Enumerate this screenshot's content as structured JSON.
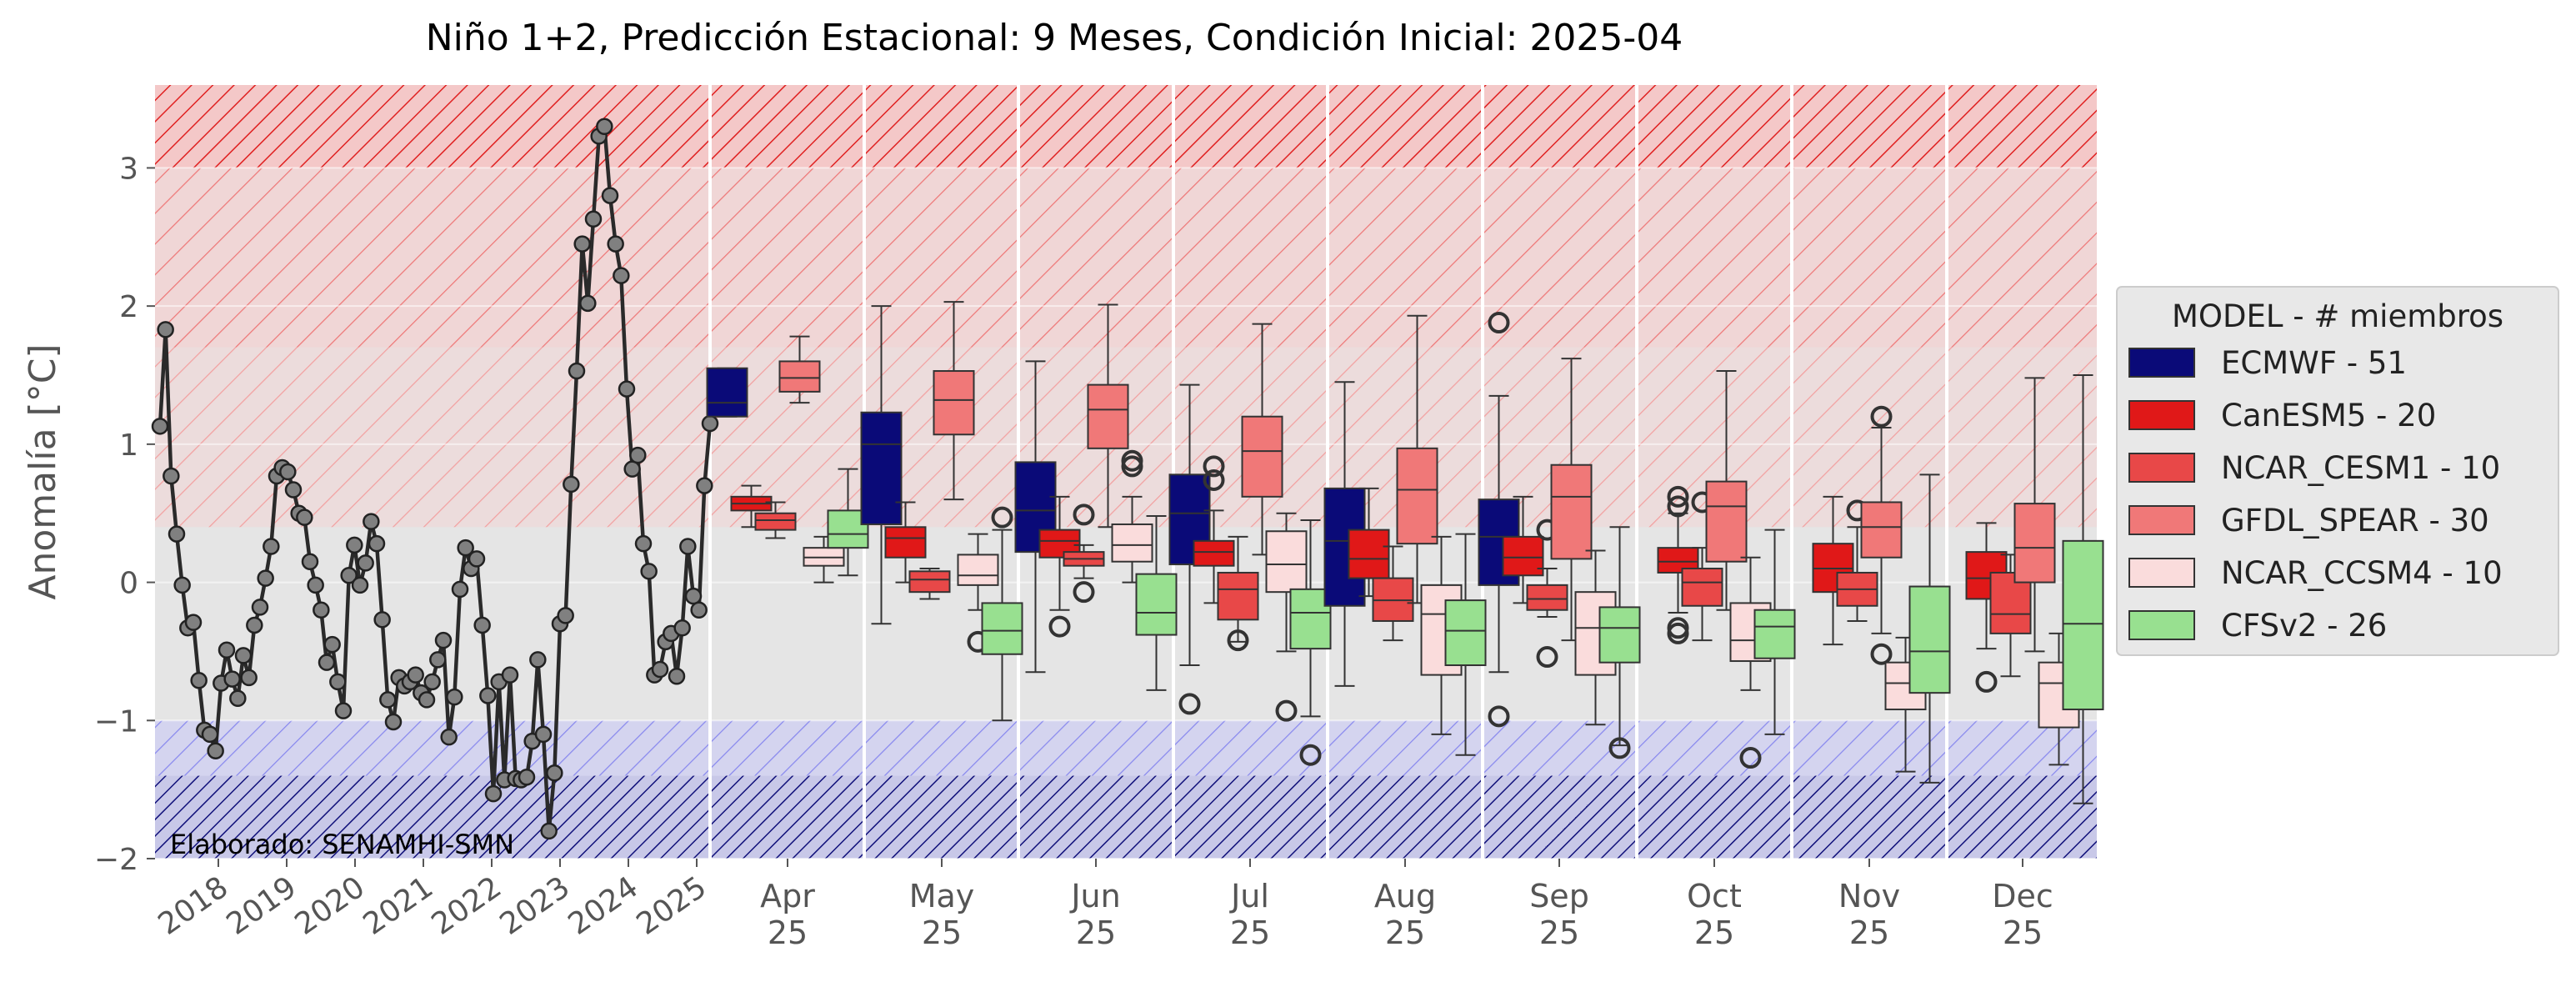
{
  "chart_data": {
    "type": "box",
    "title": "Niño 1+2, Predicción Estacional: 9 Meses, Condición Inicial: 2025-04",
    "ylabel": "Anomalía [°C]",
    "xlabel": "",
    "ylim": [
      -2,
      3.6
    ],
    "yticks": [
      -2,
      -1,
      0,
      1,
      2,
      3
    ],
    "ytick_labels": [
      "−2",
      "−1",
      "0",
      "1",
      "2",
      "3"
    ],
    "grid": true,
    "credit": "Elaborado: SENAMHI-SMN",
    "bands": [
      {
        "from": 3.0,
        "to": 3.6,
        "color": "#ee2222",
        "hatch": "dense"
      },
      {
        "from": 1.7,
        "to": 3.0,
        "color": "#ee6666",
        "hatch": "medium"
      },
      {
        "from": 0.4,
        "to": 1.7,
        "color": "#f08080",
        "hatch": "light"
      },
      {
        "from": -1.4,
        "to": -1.0,
        "color": "#5555dd",
        "hatch": "light"
      },
      {
        "from": -2.0,
        "to": -1.4,
        "color": "#000080",
        "hatch": "dense"
      }
    ],
    "history": {
      "year_ticks": [
        "2018",
        "2019",
        "2020",
        "2021",
        "2022",
        "2023",
        "2024",
        "2025"
      ],
      "values": [
        1.13,
        1.83,
        0.77,
        0.35,
        -0.02,
        -0.33,
        -0.29,
        -0.71,
        -1.07,
        -1.1,
        -1.22,
        -0.73,
        -0.49,
        -0.7,
        -0.84,
        -0.53,
        -0.69,
        -0.31,
        -0.18,
        0.03,
        0.26,
        0.77,
        0.83,
        0.8,
        0.67,
        0.5,
        0.47,
        0.15,
        -0.02,
        -0.2,
        -0.58,
        -0.45,
        -0.72,
        -0.93,
        0.05,
        0.27,
        -0.02,
        0.14,
        0.44,
        0.28,
        -0.27,
        -0.85,
        -1.01,
        -0.69,
        -0.75,
        -0.72,
        -0.67,
        -0.8,
        -0.85,
        -0.72,
        -0.56,
        -0.42,
        -1.12,
        -0.83,
        -0.05,
        0.25,
        0.1,
        0.17,
        -0.31,
        -0.82,
        -1.53,
        -0.72,
        -1.43,
        -0.67,
        -1.42,
        -1.43,
        -1.41,
        -1.15,
        -0.56,
        -1.1,
        -1.8,
        -1.38,
        -0.3,
        -0.24,
        0.71,
        1.53,
        2.45,
        2.02,
        2.63,
        3.23,
        3.3,
        2.8,
        2.45,
        2.22,
        1.4,
        0.82,
        0.92,
        0.28,
        0.08,
        -0.67,
        -0.63,
        -0.43,
        -0.37,
        -0.68,
        -0.33,
        0.26,
        -0.1,
        -0.2,
        0.7,
        1.15
      ]
    },
    "legend": {
      "title": "MODEL - # miembros",
      "position": "right",
      "entries": [
        {
          "label": "ECMWF - 51",
          "color": "#0a0a78"
        },
        {
          "label": "CanESM5 - 20",
          "color": "#e01818"
        },
        {
          "label": "NCAR_CESM1 - 10",
          "color": "#e84848"
        },
        {
          "label": "GFDL_SPEAR - 30",
          "color": "#f07878"
        },
        {
          "label": "NCAR_CCSM4 - 10",
          "color": "#fadcdc"
        },
        {
          "label": "CFSv2 - 26",
          "color": "#98e090"
        }
      ]
    },
    "months": [
      {
        "label": "Apr\n25",
        "boxes": [
          {
            "model": 0,
            "min": 1.2,
            "q1": 1.2,
            "med": 1.3,
            "q3": 1.55,
            "max": 1.55,
            "outliers": []
          },
          {
            "model": 1,
            "min": 0.4,
            "q1": 0.52,
            "med": 0.57,
            "q3": 0.62,
            "max": 0.7,
            "outliers": []
          },
          {
            "model": 2,
            "min": 0.32,
            "q1": 0.38,
            "med": 0.45,
            "q3": 0.5,
            "max": 0.58,
            "outliers": []
          },
          {
            "model": 3,
            "min": 1.3,
            "q1": 1.38,
            "med": 1.48,
            "q3": 1.6,
            "max": 1.78,
            "outliers": []
          },
          {
            "model": 4,
            "min": 0.0,
            "q1": 0.12,
            "med": 0.18,
            "q3": 0.25,
            "max": 0.33,
            "outliers": []
          },
          {
            "model": 5,
            "min": 0.05,
            "q1": 0.25,
            "med": 0.35,
            "q3": 0.52,
            "max": 0.82,
            "outliers": []
          }
        ]
      },
      {
        "label": "May\n25",
        "boxes": [
          {
            "model": 0,
            "min": -0.3,
            "q1": 0.42,
            "med": 1.0,
            "q3": 1.23,
            "max": 2.0,
            "outliers": []
          },
          {
            "model": 1,
            "min": 0.0,
            "q1": 0.18,
            "med": 0.32,
            "q3": 0.4,
            "max": 0.58,
            "outliers": []
          },
          {
            "model": 2,
            "min": -0.12,
            "q1": -0.07,
            "med": 0.02,
            "q3": 0.08,
            "max": 0.1,
            "outliers": []
          },
          {
            "model": 3,
            "min": 0.6,
            "q1": 1.07,
            "med": 1.32,
            "q3": 1.53,
            "max": 2.03,
            "outliers": []
          },
          {
            "model": 4,
            "min": -0.2,
            "q1": -0.02,
            "med": 0.05,
            "q3": 0.2,
            "max": 0.35,
            "outliers": [
              -0.43
            ]
          },
          {
            "model": 5,
            "min": -1.0,
            "q1": -0.52,
            "med": -0.35,
            "q3": -0.15,
            "max": 0.38,
            "outliers": [
              0.47
            ]
          }
        ]
      },
      {
        "label": "Jun\n25",
        "boxes": [
          {
            "model": 0,
            "min": -0.65,
            "q1": 0.22,
            "med": 0.52,
            "q3": 0.87,
            "max": 1.6,
            "outliers": []
          },
          {
            "model": 1,
            "min": -0.2,
            "q1": 0.18,
            "med": 0.3,
            "q3": 0.38,
            "max": 0.62,
            "outliers": [
              -0.32
            ]
          },
          {
            "model": 2,
            "min": 0.03,
            "q1": 0.12,
            "med": 0.17,
            "q3": 0.22,
            "max": 0.27,
            "outliers": [
              0.49,
              -0.07
            ]
          },
          {
            "model": 3,
            "min": 0.4,
            "q1": 0.97,
            "med": 1.25,
            "q3": 1.43,
            "max": 2.01,
            "outliers": []
          },
          {
            "model": 4,
            "min": 0.0,
            "q1": 0.15,
            "med": 0.27,
            "q3": 0.42,
            "max": 0.62,
            "outliers": [
              0.88,
              0.84
            ]
          },
          {
            "model": 5,
            "min": -0.78,
            "q1": -0.38,
            "med": -0.22,
            "q3": 0.06,
            "max": 0.48,
            "outliers": []
          }
        ]
      },
      {
        "label": "Jul\n25",
        "boxes": [
          {
            "model": 0,
            "min": -0.6,
            "q1": 0.13,
            "med": 0.5,
            "q3": 0.78,
            "max": 1.43,
            "outliers": [
              -0.88
            ]
          },
          {
            "model": 1,
            "min": -0.15,
            "q1": 0.12,
            "med": 0.22,
            "q3": 0.3,
            "max": 0.52,
            "outliers": [
              0.84,
              0.74
            ]
          },
          {
            "model": 2,
            "min": -0.43,
            "q1": -0.27,
            "med": -0.05,
            "q3": 0.07,
            "max": 0.33,
            "outliers": [
              -0.42
            ]
          },
          {
            "model": 3,
            "min": 0.2,
            "q1": 0.62,
            "med": 0.95,
            "q3": 1.2,
            "max": 1.87,
            "outliers": []
          },
          {
            "model": 4,
            "min": -0.5,
            "q1": -0.07,
            "med": 0.13,
            "q3": 0.37,
            "max": 0.5,
            "outliers": [
              -0.93
            ]
          },
          {
            "model": 5,
            "min": -0.97,
            "q1": -0.48,
            "med": -0.22,
            "q3": -0.05,
            "max": 0.45,
            "outliers": [
              -1.25
            ]
          }
        ]
      },
      {
        "label": "Aug\n25",
        "boxes": [
          {
            "model": 0,
            "min": -0.75,
            "q1": -0.17,
            "med": 0.3,
            "q3": 0.68,
            "max": 1.45,
            "outliers": []
          },
          {
            "model": 1,
            "min": -0.1,
            "q1": 0.03,
            "med": 0.17,
            "q3": 0.38,
            "max": 0.68,
            "outliers": []
          },
          {
            "model": 2,
            "min": -0.42,
            "q1": -0.28,
            "med": -0.13,
            "q3": 0.03,
            "max": 0.26,
            "outliers": []
          },
          {
            "model": 3,
            "min": -0.15,
            "q1": 0.28,
            "med": 0.67,
            "q3": 0.97,
            "max": 1.93,
            "outliers": []
          },
          {
            "model": 4,
            "min": -1.1,
            "q1": -0.67,
            "med": -0.23,
            "q3": -0.02,
            "max": 0.33,
            "outliers": []
          },
          {
            "model": 5,
            "min": -1.25,
            "q1": -0.6,
            "med": -0.35,
            "q3": -0.13,
            "max": 0.35,
            "outliers": []
          }
        ]
      },
      {
        "label": "Sep\n25",
        "boxes": [
          {
            "model": 0,
            "min": -0.65,
            "q1": -0.02,
            "med": 0.33,
            "q3": 0.6,
            "max": 1.35,
            "outliers": [
              1.88,
              -0.97
            ]
          },
          {
            "model": 1,
            "min": -0.15,
            "q1": 0.05,
            "med": 0.18,
            "q3": 0.33,
            "max": 0.62,
            "outliers": []
          },
          {
            "model": 2,
            "min": -0.25,
            "q1": -0.2,
            "med": -0.12,
            "q3": -0.02,
            "max": 0.1,
            "outliers": [
              0.38,
              -0.54
            ]
          },
          {
            "model": 3,
            "min": -0.42,
            "q1": 0.17,
            "med": 0.62,
            "q3": 0.85,
            "max": 1.62,
            "outliers": []
          },
          {
            "model": 4,
            "min": -1.03,
            "q1": -0.67,
            "med": -0.33,
            "q3": -0.07,
            "max": 0.23,
            "outliers": []
          },
          {
            "model": 5,
            "min": -1.18,
            "q1": -0.58,
            "med": -0.33,
            "q3": -0.18,
            "max": 0.4,
            "outliers": [
              -1.2
            ]
          }
        ]
      },
      {
        "label": "Oct\n25",
        "boxes": [
          {
            "model": 1,
            "min": -0.22,
            "q1": 0.07,
            "med": 0.15,
            "q3": 0.25,
            "max": 0.5,
            "outliers": [
              0.62,
              0.55,
              -0.33,
              -0.37
            ]
          },
          {
            "model": 2,
            "min": -0.42,
            "q1": -0.17,
            "med": 0.0,
            "q3": 0.1,
            "max": 0.25,
            "outliers": [
              0.58
            ]
          },
          {
            "model": 3,
            "min": -0.2,
            "q1": 0.15,
            "med": 0.55,
            "q3": 0.73,
            "max": 1.53,
            "outliers": []
          },
          {
            "model": 4,
            "min": -0.78,
            "q1": -0.57,
            "med": -0.42,
            "q3": -0.15,
            "max": 0.18,
            "outliers": [
              -1.27
            ]
          },
          {
            "model": 5,
            "min": -1.1,
            "q1": -0.55,
            "med": -0.32,
            "q3": -0.2,
            "max": 0.38,
            "outliers": []
          }
        ]
      },
      {
        "label": "Nov\n25",
        "boxes": [
          {
            "model": 1,
            "min": -0.45,
            "q1": -0.07,
            "med": 0.1,
            "q3": 0.28,
            "max": 0.62,
            "outliers": []
          },
          {
            "model": 2,
            "min": -0.28,
            "q1": -0.17,
            "med": -0.05,
            "q3": 0.07,
            "max": 0.4,
            "outliers": [
              0.52
            ]
          },
          {
            "model": 3,
            "min": -0.37,
            "q1": 0.18,
            "med": 0.4,
            "q3": 0.58,
            "max": 1.12,
            "outliers": [
              1.2,
              -0.52
            ]
          },
          {
            "model": 4,
            "min": -1.37,
            "q1": -0.92,
            "med": -0.73,
            "q3": -0.58,
            "max": -0.4,
            "outliers": []
          },
          {
            "model": 5,
            "min": -1.45,
            "q1": -0.8,
            "med": -0.5,
            "q3": -0.03,
            "max": 0.78,
            "outliers": []
          }
        ]
      },
      {
        "label": "Dec\n25",
        "boxes": [
          {
            "model": 1,
            "min": -0.48,
            "q1": -0.12,
            "med": 0.03,
            "q3": 0.22,
            "max": 0.43,
            "outliers": [
              -0.72
            ]
          },
          {
            "model": 2,
            "min": -0.68,
            "q1": -0.37,
            "med": -0.23,
            "q3": 0.07,
            "max": 0.2,
            "outliers": []
          },
          {
            "model": 3,
            "min": -0.5,
            "q1": 0.0,
            "med": 0.25,
            "q3": 0.57,
            "max": 1.48,
            "outliers": []
          },
          {
            "model": 4,
            "min": -1.32,
            "q1": -1.05,
            "med": -0.73,
            "q3": -0.58,
            "max": -0.37,
            "outliers": []
          },
          {
            "model": 5,
            "min": -1.6,
            "q1": -0.92,
            "med": -0.3,
            "q3": 0.3,
            "max": 1.5,
            "outliers": []
          }
        ]
      }
    ]
  }
}
